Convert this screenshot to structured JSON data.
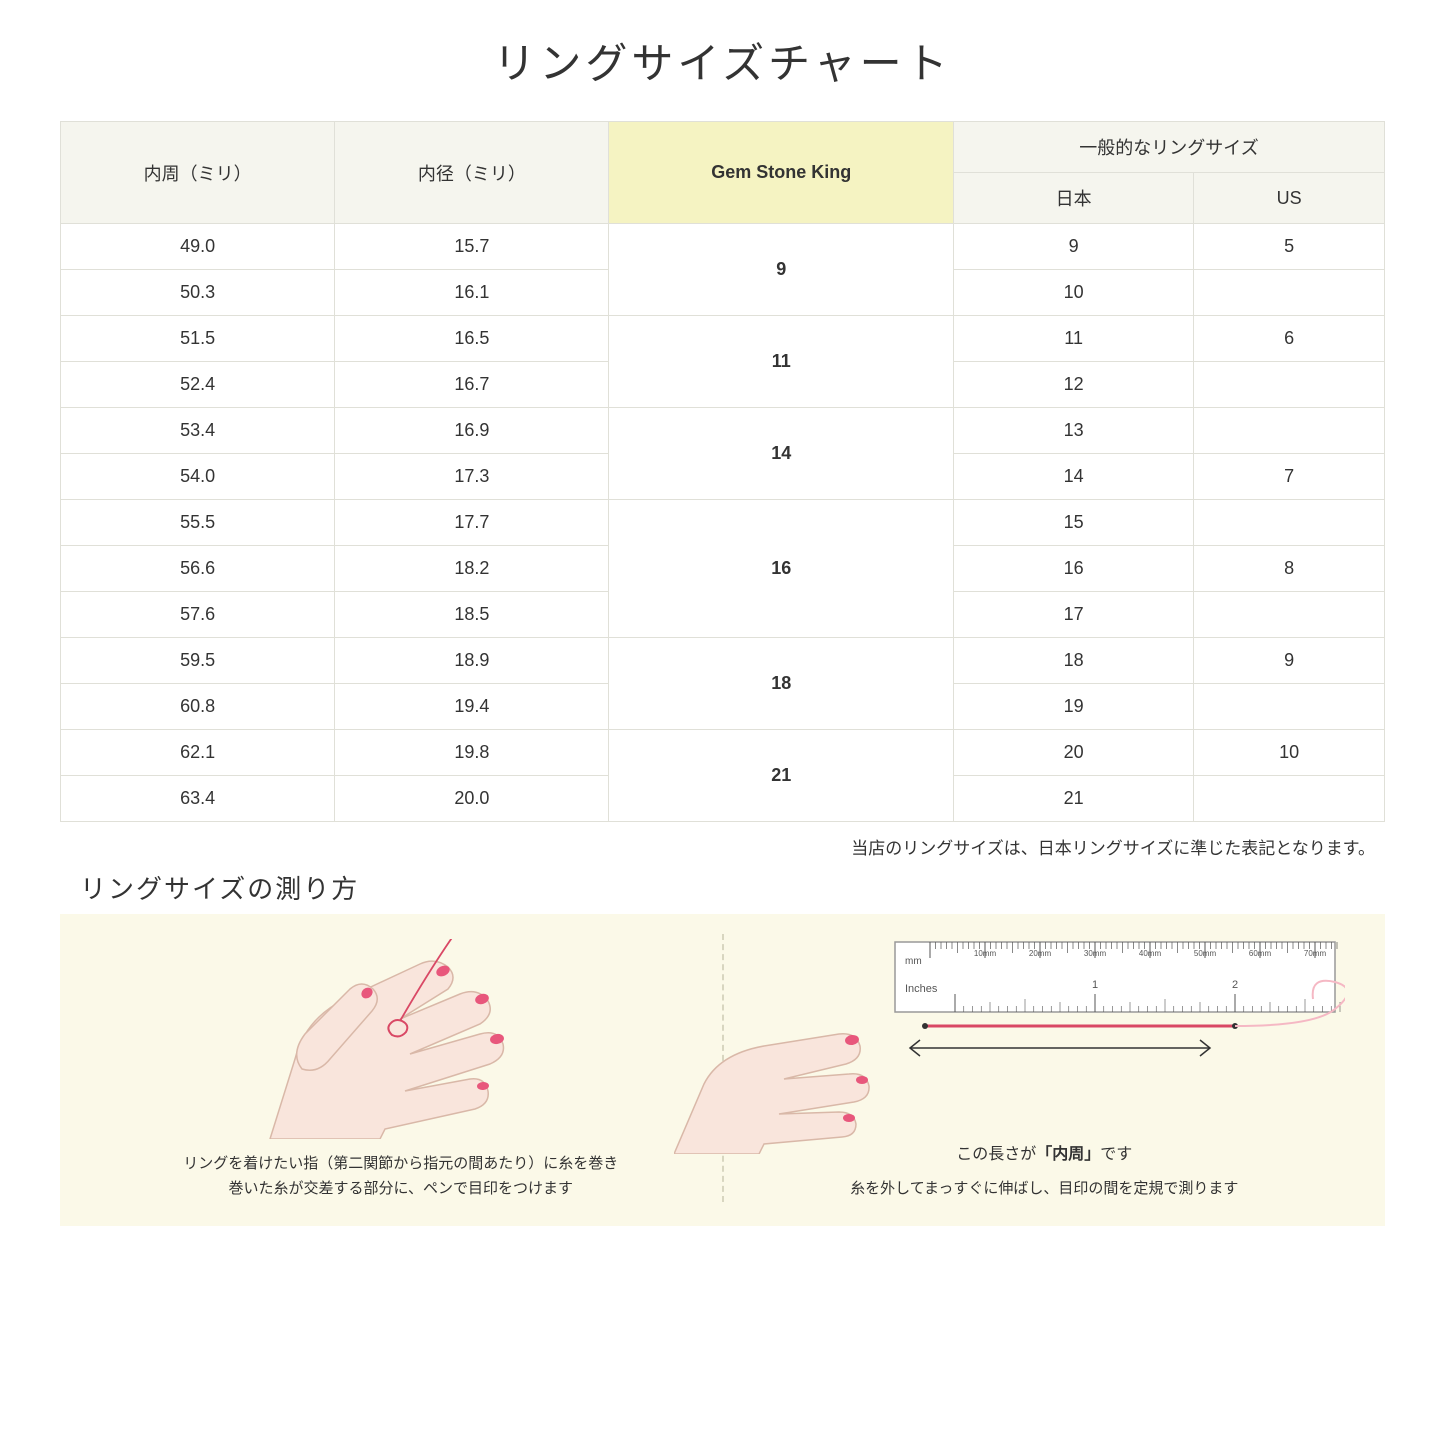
{
  "title": "リングサイズチャート",
  "headers": {
    "circumference": "内周（ミリ）",
    "diameter": "内径（ミリ）",
    "gemstone": "Gem Stone King",
    "common": "一般的なリングサイズ",
    "japan": "日本",
    "us": "US"
  },
  "rows": [
    {
      "circ": "49.0",
      "dia": "15.7",
      "gsk": "9",
      "gskSpan": 2,
      "jp": "9",
      "us": "5"
    },
    {
      "circ": "50.3",
      "dia": "16.1",
      "jp": "10",
      "us": ""
    },
    {
      "circ": "51.5",
      "dia": "16.5",
      "gsk": "11",
      "gskSpan": 2,
      "jp": "11",
      "us": "6"
    },
    {
      "circ": "52.4",
      "dia": "16.7",
      "jp": "12",
      "us": ""
    },
    {
      "circ": "53.4",
      "dia": "16.9",
      "gsk": "14",
      "gskSpan": 2,
      "jp": "13",
      "us": ""
    },
    {
      "circ": "54.0",
      "dia": "17.3",
      "jp": "14",
      "us": "7"
    },
    {
      "circ": "55.5",
      "dia": "17.7",
      "gsk": "16",
      "gskSpan": 3,
      "jp": "15",
      "us": ""
    },
    {
      "circ": "56.6",
      "dia": "18.2",
      "jp": "16",
      "us": "8"
    },
    {
      "circ": "57.6",
      "dia": "18.5",
      "jp": "17",
      "us": ""
    },
    {
      "circ": "59.5",
      "dia": "18.9",
      "gsk": "18",
      "gskSpan": 2,
      "jp": "18",
      "us": "9"
    },
    {
      "circ": "60.8",
      "dia": "19.4",
      "jp": "19",
      "us": ""
    },
    {
      "circ": "62.1",
      "dia": "19.8",
      "gsk": "21",
      "gskSpan": 2,
      "jp": "20",
      "us": "10"
    },
    {
      "circ": "63.4",
      "dia": "20.0",
      "jp": "21",
      "us": ""
    }
  ],
  "note": "当店のリングサイズは、日本リングサイズに準じた表記となります。",
  "howto": {
    "title": "リングサイズの測り方",
    "step1": "リングを着けたい指（第二関節から指元の間あたり）に糸を巻き\n巻いた糸が交差する部分に、ペンで目印をつけます",
    "step2_label_pre": "この長さが",
    "step2_label_bold": "「内周」",
    "step2_label_post": "です",
    "step2": "糸を外してまっすぐに伸ばし、目印の間を定規で測ります",
    "ruler_mm": "mm",
    "ruler_in": "Inches",
    "ruler_ticks_mm": [
      "10mm",
      "20mm",
      "30mm",
      "40mm",
      "50mm",
      "60mm",
      "70mm"
    ],
    "ruler_ticks_in": [
      "1",
      "2"
    ]
  },
  "colors": {
    "header_bg": "#f5f5ee",
    "highlight_bg": "#f5f3c2",
    "border": "#e0e0d8",
    "howto_bg": "#fbf9e8",
    "hand_fill": "#f9e5dc",
    "hand_stroke": "#d9b8a8",
    "nail": "#e8577c",
    "thread": "#d94865"
  }
}
